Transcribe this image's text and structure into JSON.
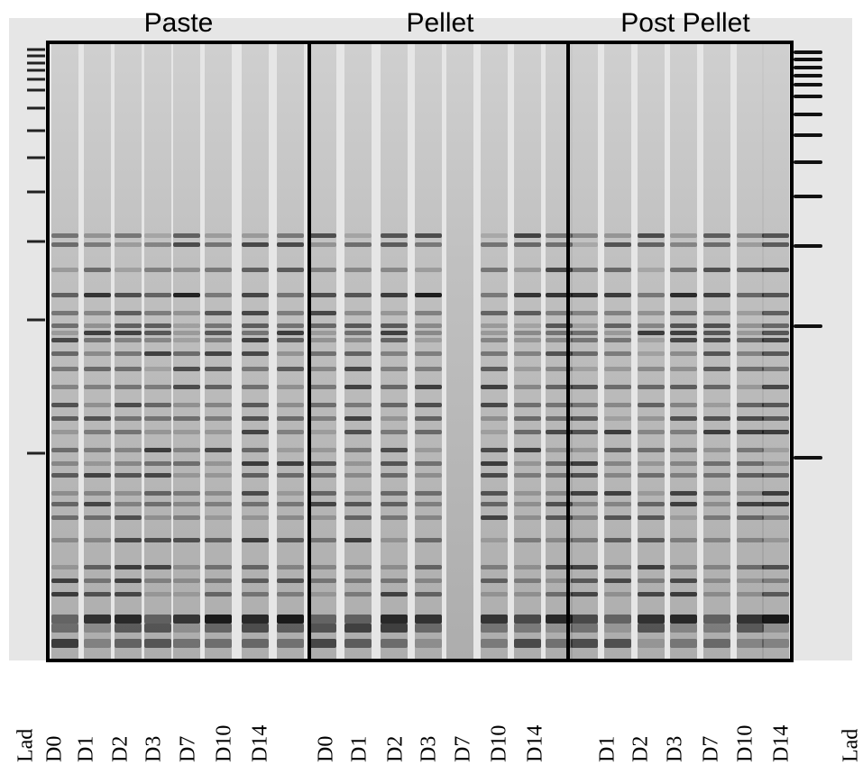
{
  "headers": [
    "Paste",
    "Pellet",
    "Post Pellet"
  ],
  "lane_labels": [
    "Lad",
    "D0",
    "D1",
    "D2",
    "D3",
    "D7",
    "D10",
    "D14",
    "D0",
    "D1",
    "D2",
    "D3",
    "D7",
    "D10",
    "D14",
    "D1",
    "D2",
    "D3",
    "D7",
    "D10",
    "D14",
    "Lad"
  ]
}
